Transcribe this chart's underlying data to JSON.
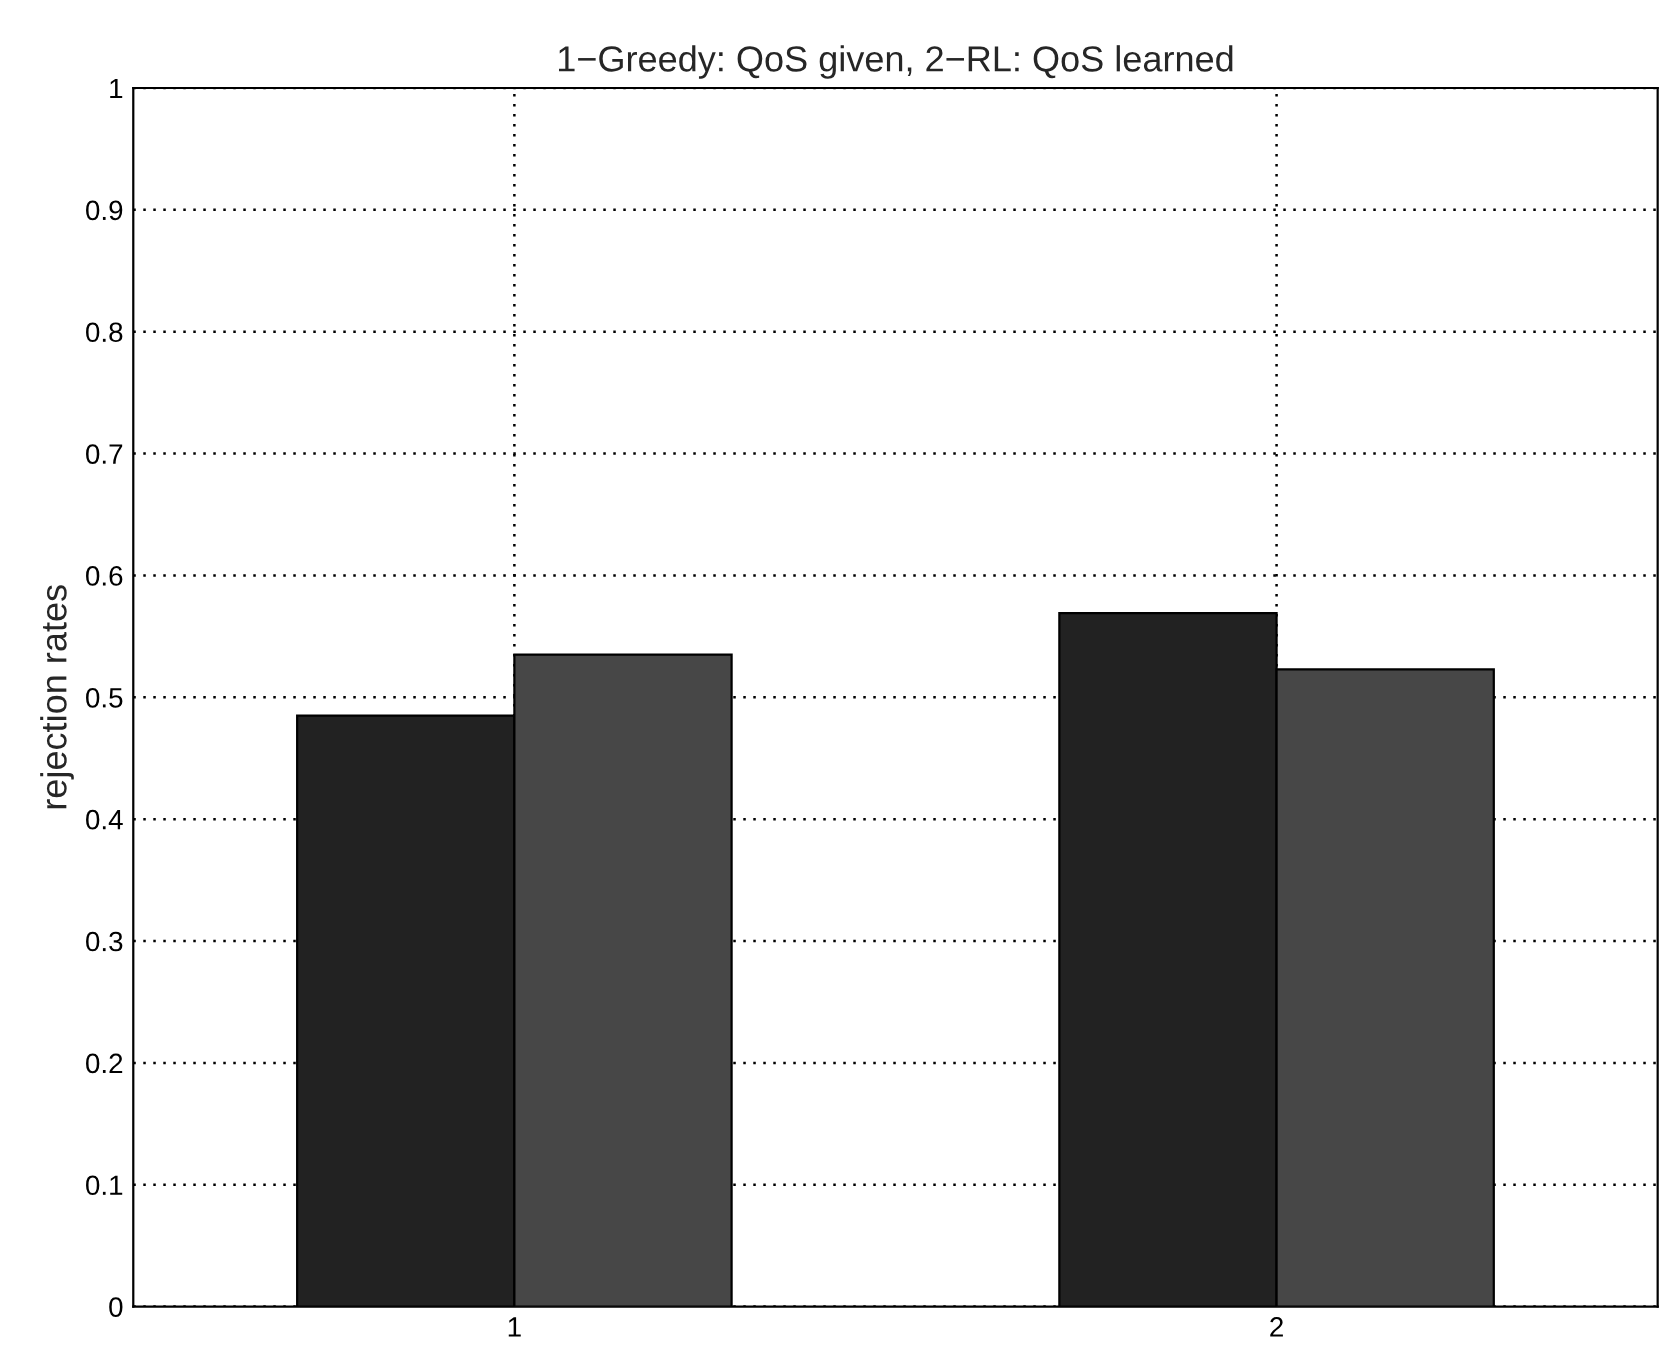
{
  "chart_data": {
    "type": "bar",
    "title": "1−Greedy: QoS given, 2−RL: QoS learned",
    "ylabel": "rejection rates",
    "categories": [
      "1",
      "2"
    ],
    "series": [
      {
        "color": "#222222",
        "values": [
          0.485,
          0.569
        ]
      },
      {
        "color": "#474747",
        "values": [
          0.535,
          0.523
        ]
      }
    ],
    "ylim": [
      0,
      1
    ],
    "yticks": [
      0,
      0.1,
      0.2,
      0.3,
      0.4,
      0.5,
      0.6,
      0.7,
      0.8,
      0.9,
      1
    ],
    "grid": true
  }
}
